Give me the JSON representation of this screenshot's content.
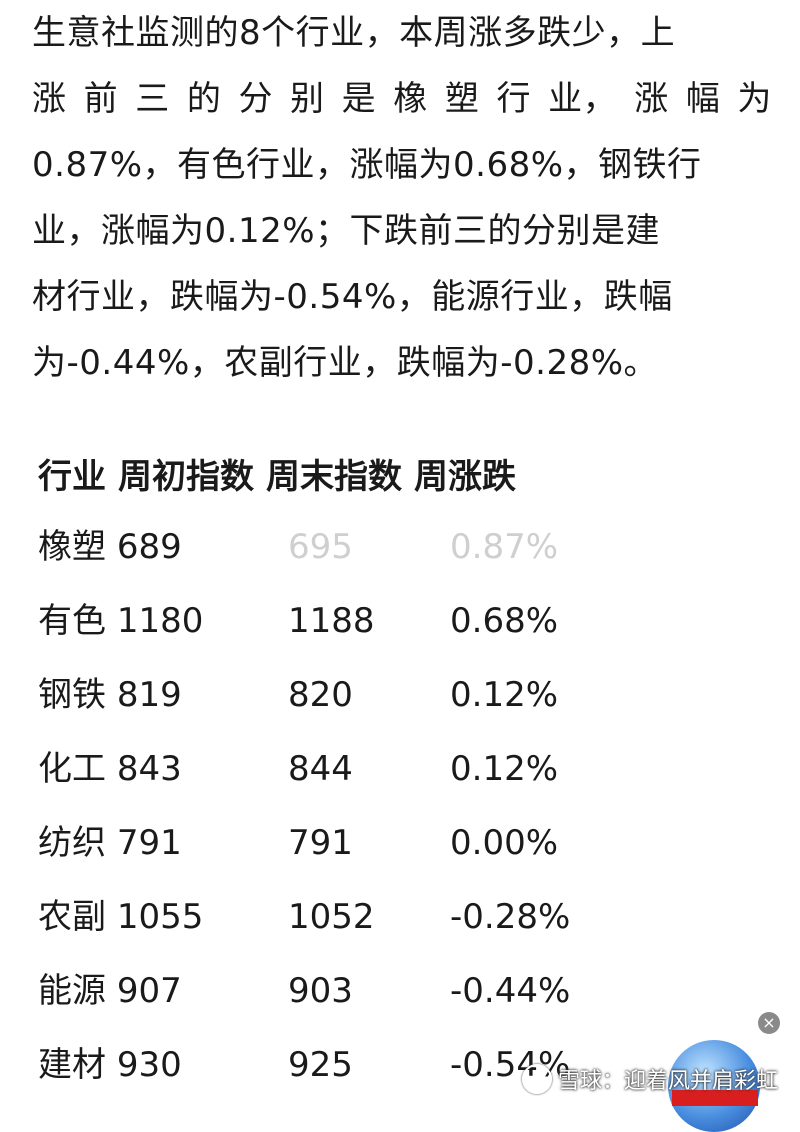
{
  "paragraph": {
    "lines": [
      "生意社监测的8个行业，本周涨多跌少，上",
      "涨前三的分别是橡塑行业，涨幅为",
      "0.87%，有色行业，涨幅为0.68%，钢铁行",
      "业，涨幅为0.12%；下跌前三的分别是建",
      "材行业，跌幅为-0.54%，能源行业，跌幅",
      "为-0.44%，农副行业，跌幅为-0.28%。"
    ]
  },
  "table": {
    "headers": [
      "行业",
      "周初指数",
      "周末指数",
      "周涨跌"
    ],
    "rows": [
      {
        "industry": "橡塑",
        "start": "689",
        "end": "695",
        "change": "0.87%"
      },
      {
        "industry": "有色",
        "start": "1180",
        "end": "1188",
        "change": "0.68%"
      },
      {
        "industry": "钢铁",
        "start": "819",
        "end": "820",
        "change": "0.12%"
      },
      {
        "industry": "化工",
        "start": "843",
        "end": "844",
        "change": "0.12%"
      },
      {
        "industry": "纺织",
        "start": "791",
        "end": "791",
        "change": "0.00%"
      },
      {
        "industry": "农副",
        "start": "1055",
        "end": "1052",
        "change": "-0.28%"
      },
      {
        "industry": "能源",
        "start": "907",
        "end": "903",
        "change": "-0.44%"
      },
      {
        "industry": "建材",
        "start": "930",
        "end": "925",
        "change": "-0.54%"
      }
    ]
  },
  "watermark": {
    "text": "雪球：迎着风并肩彩虹",
    "icon": "snowball-logo-icon"
  },
  "overlay": {
    "close_label": "×",
    "icon": "news-globe-icon"
  }
}
